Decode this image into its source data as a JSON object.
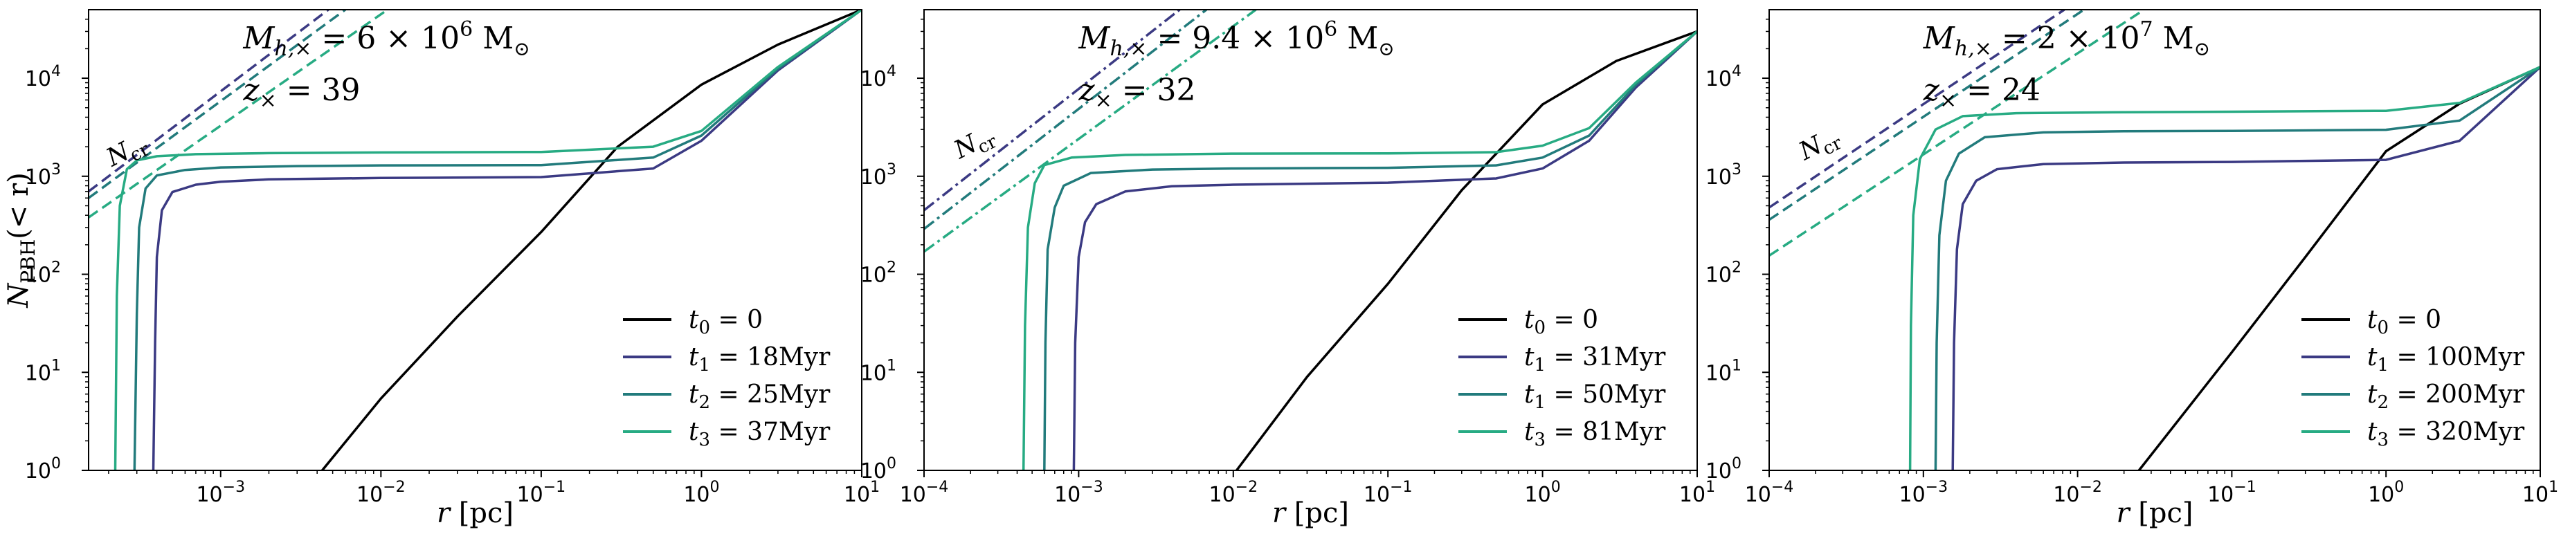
{
  "figure": {
    "ylabel_main": "N",
    "ylabel_sub": "PBH",
    "ylabel_tail": "(< r)",
    "ncr_label": "N",
    "ncr_sub": "cr"
  },
  "chart_data": [
    {
      "type": "line",
      "xscale": "log",
      "yscale": "log",
      "xlim": [
        0.00015,
        10
      ],
      "ylim": [
        1,
        50000
      ],
      "xticks": [
        0.001,
        0.01,
        0.1,
        1,
        10
      ],
      "xtick_labels": [
        [
          "10",
          "−3"
        ],
        [
          "10",
          "−2"
        ],
        [
          "10",
          "−1"
        ],
        [
          "10",
          "0"
        ],
        [
          "10",
          "1"
        ]
      ],
      "yticks": [
        1,
        10,
        100,
        1000,
        10000
      ],
      "ytick_labels": [
        [
          "10",
          "0"
        ],
        [
          "10",
          "1"
        ],
        [
          "10",
          "2"
        ],
        [
          "10",
          "3"
        ],
        [
          "10",
          "4"
        ]
      ],
      "xlabel": "r [pc]",
      "show_ylabel": true,
      "annotation": {
        "mass_label": "M",
        "mass_sub": "h,×",
        "mass_value": " = 6 × 10",
        "mass_exp": "6",
        "mass_unit": " M",
        "z_label": "z",
        "z_sub": "×",
        "z_value": " = 39"
      },
      "ncr_anchor": {
        "x": 0.00021,
        "y": 1250
      },
      "legend_loc": "lower right",
      "colors": [
        "#000000",
        "#3b3a83",
        "#227b7c",
        "#27ab83"
      ],
      "series": [
        {
          "label_sym": "t",
          "label_sub": "0",
          "label_val": " = 0",
          "color": "#000000",
          "x": [
            0.0043,
            0.01,
            0.03,
            0.1,
            0.3,
            1,
            3,
            10
          ],
          "y": [
            1,
            5.4,
            37,
            270,
            2000,
            8600,
            22000,
            50000
          ]
        },
        {
          "label_sym": "t",
          "label_sub": "1",
          "label_val": " = 18Myr",
          "color": "#3b3a83",
          "x": [
            0.00038,
            0.00039,
            0.0004,
            0.00043,
            0.0005,
            0.0007,
            0.001,
            0.002,
            0.01,
            0.1,
            0.5,
            1,
            3,
            10
          ],
          "y": [
            1,
            20,
            150,
            450,
            690,
            820,
            880,
            930,
            960,
            980,
            1200,
            2300,
            12000,
            50000
          ]
        },
        {
          "label_sym": "t",
          "label_sub": "2",
          "label_val": " = 25Myr",
          "color": "#227b7c",
          "x": [
            0.00029,
            0.0003,
            0.00031,
            0.00034,
            0.0004,
            0.0006,
            0.001,
            0.003,
            0.01,
            0.1,
            0.5,
            1,
            3,
            10
          ],
          "y": [
            1,
            40,
            300,
            750,
            1020,
            1160,
            1230,
            1270,
            1290,
            1300,
            1550,
            2600,
            12500,
            50000
          ]
        },
        {
          "label_sym": "t",
          "label_sub": "3",
          "label_val": " = 37Myr",
          "color": "#27ab83",
          "x": [
            0.00022,
            0.000225,
            0.000235,
            0.00026,
            0.0003,
            0.0004,
            0.0007,
            0.002,
            0.01,
            0.1,
            0.5,
            1,
            3,
            10
          ],
          "y": [
            1,
            60,
            500,
            1180,
            1450,
            1600,
            1680,
            1720,
            1750,
            1770,
            2000,
            2900,
            13000,
            50000
          ]
        }
      ],
      "ncr_lines": [
        {
          "color": "#3b3a83",
          "dash": "dashed",
          "x": [
            0.00015,
            0.0047
          ],
          "y": [
            700,
            50000
          ]
        },
        {
          "color": "#227b7c",
          "dash": "dashed",
          "x": [
            0.00015,
            0.006
          ],
          "y": [
            600,
            50000
          ]
        },
        {
          "color": "#27ab83",
          "dash": "dashed",
          "x": [
            0.00015,
            0.011
          ],
          "y": [
            380,
            50000
          ]
        }
      ]
    },
    {
      "type": "line",
      "xscale": "log",
      "yscale": "log",
      "xlim": [
        0.0001,
        10
      ],
      "ylim": [
        1,
        50000
      ],
      "xticks": [
        0.0001,
        0.001,
        0.01,
        0.1,
        1,
        10
      ],
      "xtick_labels": [
        [
          "10",
          "−4"
        ],
        [
          "10",
          "−3"
        ],
        [
          "10",
          "−2"
        ],
        [
          "10",
          "−1"
        ],
        [
          "10",
          "0"
        ],
        [
          "10",
          "1"
        ]
      ],
      "yticks": [
        1,
        10,
        100,
        1000,
        10000
      ],
      "ytick_labels": [
        [
          "10",
          "0"
        ],
        [
          "10",
          "1"
        ],
        [
          "10",
          "2"
        ],
        [
          "10",
          "3"
        ],
        [
          "10",
          "4"
        ]
      ],
      "xlabel": "r [pc]",
      "show_ylabel": false,
      "annotation": {
        "mass_label": "M",
        "mass_sub": "h,×",
        "mass_value": " = 9.4 × 10",
        "mass_exp": "6",
        "mass_unit": " M",
        "z_label": "z",
        "z_sub": "×",
        "z_value": " = 32"
      },
      "ncr_anchor": {
        "x": 0.00017,
        "y": 1500
      },
      "legend_loc": "lower right",
      "colors": [
        "#000000",
        "#3b3a83",
        "#227b7c",
        "#27ab83"
      ],
      "series": [
        {
          "label_sym": "t",
          "label_sub": "0",
          "label_val": " = 0",
          "color": "#000000",
          "x": [
            0.0105,
            0.03,
            0.1,
            0.3,
            1,
            3,
            10
          ],
          "y": [
            1,
            9,
            80,
            720,
            5400,
            15000,
            30000
          ]
        },
        {
          "label_sym": "t",
          "label_sub": "1",
          "label_val": " = 31Myr",
          "color": "#3b3a83",
          "x": [
            0.00093,
            0.00095,
            0.001,
            0.0011,
            0.0013,
            0.002,
            0.004,
            0.01,
            0.1,
            0.5,
            1,
            2,
            4,
            10
          ],
          "y": [
            1,
            20,
            150,
            340,
            520,
            700,
            790,
            820,
            860,
            950,
            1200,
            2300,
            8000,
            30000
          ]
        },
        {
          "label_sym": "t",
          "label_sub": "1",
          "label_val": " = 50Myr",
          "color": "#227b7c",
          "x": [
            0.0006,
            0.00061,
            0.00063,
            0.0007,
            0.0008,
            0.0012,
            0.003,
            0.01,
            0.1,
            0.5,
            1,
            2,
            4,
            10
          ],
          "y": [
            1,
            20,
            180,
            480,
            800,
            1080,
            1170,
            1200,
            1220,
            1290,
            1550,
            2600,
            8500,
            30000
          ]
        },
        {
          "label_sym": "t",
          "label_sub": "3",
          "label_val": " = 81Myr",
          "color": "#27ab83",
          "x": [
            0.00044,
            0.00045,
            0.00047,
            0.00052,
            0.0006,
            0.0009,
            0.002,
            0.01,
            0.1,
            0.5,
            1,
            2,
            4,
            10
          ],
          "y": [
            1,
            30,
            300,
            850,
            1300,
            1550,
            1650,
            1700,
            1710,
            1760,
            2050,
            3100,
            9000,
            30000
          ]
        }
      ],
      "ncr_lines": [
        {
          "color": "#3b3a83",
          "dash": "dashdot",
          "x": [
            0.0001,
            0.0045
          ],
          "y": [
            450,
            50000
          ]
        },
        {
          "color": "#227b7c",
          "dash": "dashdot",
          "x": [
            0.0001,
            0.0067
          ],
          "y": [
            290,
            50000
          ]
        },
        {
          "color": "#27ab83",
          "dash": "dashdot",
          "x": [
            0.0001,
            0.014
          ],
          "y": [
            170,
            50000
          ]
        }
      ]
    },
    {
      "type": "line",
      "xscale": "log",
      "yscale": "log",
      "xlim": [
        0.0001,
        10
      ],
      "ylim": [
        1,
        50000
      ],
      "xticks": [
        0.0001,
        0.001,
        0.01,
        0.1,
        1,
        10
      ],
      "xtick_labels": [
        [
          "10",
          "−4"
        ],
        [
          "10",
          "−3"
        ],
        [
          "10",
          "−2"
        ],
        [
          "10",
          "−1"
        ],
        [
          "10",
          "0"
        ],
        [
          "10",
          "1"
        ]
      ],
      "yticks": [
        1,
        10,
        100,
        1000,
        10000
      ],
      "ytick_labels": [
        [
          "10",
          "0"
        ],
        [
          "10",
          "1"
        ],
        [
          "10",
          "2"
        ],
        [
          "10",
          "3"
        ],
        [
          "10",
          "4"
        ]
      ],
      "xlabel": "r [pc]",
      "show_ylabel": false,
      "annotation": {
        "mass_label": "M",
        "mass_sub": "h,×",
        "mass_value": " = 2 × 10",
        "mass_exp": "7",
        "mass_unit": " M",
        "z_label": "z",
        "z_sub": "×",
        "z_value": " = 24"
      },
      "ncr_anchor": {
        "x": 0.00017,
        "y": 1450
      },
      "legend_loc": "lower right",
      "colors": [
        "#000000",
        "#3b3a83",
        "#227b7c",
        "#27ab83"
      ],
      "series": [
        {
          "label_sym": "t",
          "label_sub": "0",
          "label_val": " = 0",
          "color": "#000000",
          "x": [
            0.025,
            0.1,
            0.3,
            1,
            3,
            10
          ],
          "y": [
            1,
            16,
            150,
            1800,
            5500,
            13000
          ]
        },
        {
          "label_sym": "t",
          "label_sub": "1",
          "label_val": " = 100Myr",
          "color": "#3b3a83",
          "x": [
            0.00155,
            0.00158,
            0.00165,
            0.0018,
            0.0022,
            0.003,
            0.006,
            0.02,
            0.1,
            1,
            3,
            10
          ],
          "y": [
            1,
            20,
            180,
            520,
            900,
            1180,
            1330,
            1380,
            1400,
            1470,
            2300,
            13000
          ]
        },
        {
          "label_sym": "t",
          "label_sub": "2",
          "label_val": " = 200Myr",
          "color": "#227b7c",
          "x": [
            0.0012,
            0.00122,
            0.00127,
            0.0014,
            0.0017,
            0.0025,
            0.006,
            0.02,
            0.1,
            1,
            3,
            10
          ],
          "y": [
            1,
            20,
            250,
            900,
            1700,
            2500,
            2800,
            2880,
            2900,
            2980,
            3700,
            13000
          ]
        },
        {
          "label_sym": "t",
          "label_sub": "3",
          "label_val": " = 320Myr",
          "color": "#27ab83",
          "x": [
            0.00082,
            0.00083,
            0.00086,
            0.00095,
            0.0012,
            0.0018,
            0.004,
            0.02,
            0.1,
            1,
            3,
            10
          ],
          "y": [
            1,
            30,
            400,
            1500,
            3000,
            4100,
            4400,
            4500,
            4550,
            4650,
            5600,
            13000
          ]
        }
      ],
      "ncr_lines": [
        {
          "color": "#3b3a83",
          "dash": "dashed",
          "x": [
            0.0001,
            0.0082
          ],
          "y": [
            480,
            50000
          ]
        },
        {
          "color": "#227b7c",
          "dash": "dashed",
          "x": [
            0.0001,
            0.011
          ],
          "y": [
            360,
            50000
          ]
        },
        {
          "color": "#27ab83",
          "dash": "dashed",
          "x": [
            0.0001,
            0.027
          ],
          "y": [
            155,
            50000
          ]
        }
      ]
    }
  ]
}
